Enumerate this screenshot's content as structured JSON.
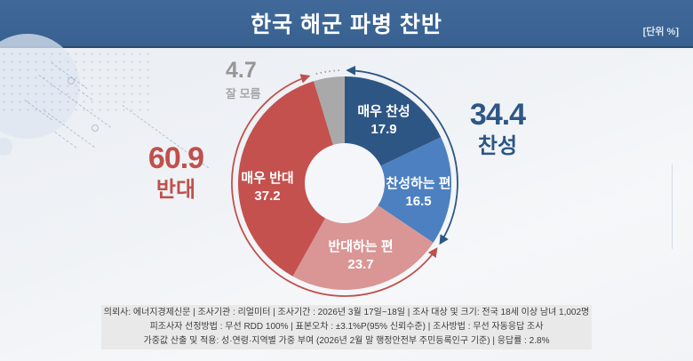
{
  "header": {
    "title": "한국 해군 파병 찬반",
    "unit_note": "[단위 %]",
    "bar_color": "#386190"
  },
  "chart_data": {
    "type": "pie",
    "donut": true,
    "title": "한국 해군 파병 찬반",
    "unit": "%",
    "start_angle_deg": 0,
    "direction": "clockwise",
    "segments": [
      {
        "label": "매우 찬성",
        "value": 17.9,
        "color": "#2e5685"
      },
      {
        "label": "찬성하는 편",
        "value": 16.5,
        "color": "#4d80c0"
      },
      {
        "label": "반대하는 편",
        "value": 23.7,
        "color": "#d99695"
      },
      {
        "label": "매우 반대",
        "value": 37.2,
        "color": "#c4514e"
      },
      {
        "label": "잘 모름",
        "value": 4.7,
        "color": "#a9a9a9"
      }
    ],
    "groups": [
      {
        "label": "찬성",
        "value": 34.4,
        "color": "#2e5685",
        "arc_style": "solid"
      },
      {
        "label": "반대",
        "value": 60.9,
        "color": "#c0504d",
        "arc_style": "solid"
      },
      {
        "label": "잘 모름",
        "value": 4.7,
        "color": "#9b9b9b",
        "arc_style": "dotted"
      }
    ],
    "hole_color": "#f5f6f9"
  },
  "footer": {
    "lines": [
      "의뢰사: 에너지경제신문 | 조사기관 : 리얼미터  |  조사기간 : 2026년 3월 17일~18일 | 조사 대상 및 크기: 전국 18세 이상 남녀 1,002명",
      "피조사자 선정방법 : 무선  RDD 100% | 표본오차 : ±3.1%P(95% 신뢰수준) | 조사방법 : 무선 자동응답 조사",
      "가중값 산출 및 적용: 성·연령·지역별 가중 부여 (2026년 2월 말 행정안전부 주민등록인구 기준) | 응답률 : 2.8%"
    ]
  }
}
